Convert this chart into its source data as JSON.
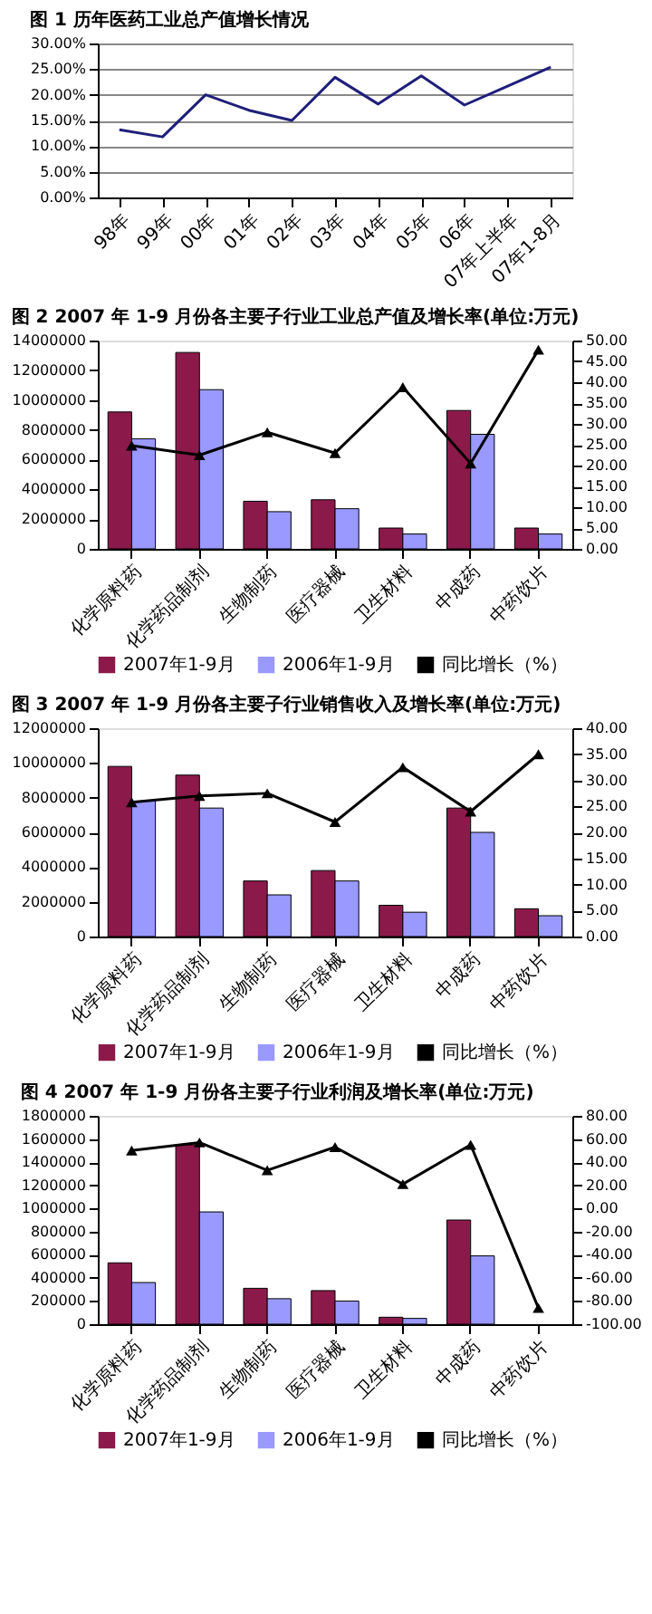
{
  "chart_data": [
    {
      "type": "line",
      "title": "图 1 历年医药工业总产值增长情况",
      "categories": [
        "98年",
        "99年",
        "00年",
        "01年",
        "02年",
        "03年",
        "04年",
        "05年",
        "06年",
        "07年上半年",
        "07年1-8月"
      ],
      "series": [
        {
          "color": "#1f1f7a",
          "values": [
            13.2,
            11.8,
            20.0,
            17.0,
            15.0,
            23.4,
            18.2,
            23.7,
            18.0,
            21.7,
            25.4
          ]
        }
      ],
      "ylim": [
        0,
        30
      ],
      "yticks": [
        {
          "value": 0,
          "label": "0.00%"
        },
        {
          "value": 5,
          "label": "5.00%"
        },
        {
          "value": 10,
          "label": "10.00%"
        },
        {
          "value": 15,
          "label": "15.00%"
        },
        {
          "value": 20,
          "label": "20.00%"
        },
        {
          "value": 25,
          "label": "25.00%"
        },
        {
          "value": 30,
          "label": "30.00%"
        }
      ],
      "grid": "y",
      "legend": false,
      "marker": "none"
    },
    {
      "type": "bar",
      "title": "图 2 2007 年 1-9 月份各主要子行业工业总产值及增长率(单位:万元)",
      "categories": [
        "化学原料药",
        "化学药品制剂",
        "生物制药",
        "医疗器械",
        "卫生材料",
        "中成药",
        "中药饮片"
      ],
      "series": [
        {
          "name": "2007年1-9月",
          "color": "#8b1a4a",
          "values": [
            9200000,
            13200000,
            3200000,
            3300000,
            1400000,
            9300000,
            1400000
          ]
        },
        {
          "name": "2006年1-9月",
          "color": "#9999ff",
          "values": [
            7400000,
            10700000,
            2500000,
            2700000,
            1000000,
            7700000,
            1000000
          ]
        },
        {
          "name": "同比增长（%）",
          "type": "line",
          "axis": "y2",
          "color": "#000000",
          "values": [
            24.8,
            22.5,
            28.0,
            23.0,
            38.8,
            20.5,
            47.8
          ]
        }
      ],
      "ylim": [
        0,
        14000000
      ],
      "yticks": [
        0,
        2000000,
        4000000,
        6000000,
        8000000,
        10000000,
        12000000,
        14000000
      ],
      "y2lim": [
        0,
        50
      ],
      "y2ticks": [
        {
          "value": 0,
          "label": "0.00"
        },
        {
          "value": 5,
          "label": "5.00"
        },
        {
          "value": 10,
          "label": "10.00"
        },
        {
          "value": 15,
          "label": "15.00"
        },
        {
          "value": 20,
          "label": "20.00"
        },
        {
          "value": 25,
          "label": "25.00"
        },
        {
          "value": 30,
          "label": "30.00"
        },
        {
          "value": 35,
          "label": "35.00"
        },
        {
          "value": 40,
          "label": "40.00"
        },
        {
          "value": 45,
          "label": "45.00"
        },
        {
          "value": 50,
          "label": "50.00"
        }
      ],
      "grid": false,
      "legend": "bottom",
      "marker": "triangle"
    },
    {
      "type": "bar",
      "title": "图 3 2007 年 1-9 月份各主要子行业销售收入及增长率(单位:万元)",
      "categories": [
        "化学原料药",
        "化学药品制剂",
        "生物制药",
        "医疗器械",
        "卫生材料",
        "中成药",
        "中药饮片"
      ],
      "series": [
        {
          "name": "2007年1-9月",
          "color": "#8b1a4a",
          "values": [
            9800000,
            9300000,
            3200000,
            3800000,
            1800000,
            7400000,
            1600000
          ]
        },
        {
          "name": "2006年1-9月",
          "color": "#9999ff",
          "values": [
            7800000,
            7400000,
            2400000,
            3200000,
            1400000,
            6000000,
            1200000
          ]
        },
        {
          "name": "同比增长（%）",
          "type": "line",
          "axis": "y2",
          "color": "#000000",
          "values": [
            25.8,
            27.0,
            27.5,
            22.0,
            32.5,
            24.0,
            35.0
          ]
        }
      ],
      "ylim": [
        0,
        12000000
      ],
      "yticks": [
        0,
        2000000,
        4000000,
        6000000,
        8000000,
        10000000,
        12000000
      ],
      "y2lim": [
        0,
        40
      ],
      "y2ticks": [
        {
          "value": 0,
          "label": "0.00"
        },
        {
          "value": 5,
          "label": "5.00"
        },
        {
          "value": 10,
          "label": "10.00"
        },
        {
          "value": 15,
          "label": "15.00"
        },
        {
          "value": 20,
          "label": "20.00"
        },
        {
          "value": 25,
          "label": "25.00"
        },
        {
          "value": 30,
          "label": "30.00"
        },
        {
          "value": 35,
          "label": "35.00"
        },
        {
          "value": 40,
          "label": "40.00"
        }
      ],
      "grid": false,
      "legend": "bottom",
      "marker": "triangle"
    },
    {
      "type": "bar",
      "title": "图 4 2007 年 1-9 月份各主要子行业利润及增长率(单位:万元)",
      "categories": [
        "化学原料药",
        "化学药品制剂",
        "生物制药",
        "医疗器械",
        "卫生材料",
        "中成药",
        "中药饮片"
      ],
      "series": [
        {
          "name": "2007年1-9月",
          "color": "#8b1a4a",
          "values": [
            530000,
            1550000,
            310000,
            290000,
            60000,
            900000,
            null
          ]
        },
        {
          "name": "2006年1-9月",
          "color": "#9999ff",
          "values": [
            360000,
            970000,
            220000,
            200000,
            50000,
            590000,
            null
          ]
        },
        {
          "name": "同比增长（%）",
          "type": "line",
          "axis": "y2",
          "color": "#000000",
          "values": [
            50,
            57,
            33,
            53,
            21,
            55,
            -86
          ]
        }
      ],
      "ylim": [
        0,
        1800000
      ],
      "yticks": [
        0,
        200000,
        400000,
        600000,
        800000,
        1000000,
        1200000,
        1400000,
        1600000,
        1800000
      ],
      "y2lim": [
        -100,
        80
      ],
      "y2ticks": [
        {
          "value": -100,
          "label": "-100.00"
        },
        {
          "value": -80,
          "label": "-80.00"
        },
        {
          "value": -60,
          "label": "-60.00"
        },
        {
          "value": -40,
          "label": "-40.00"
        },
        {
          "value": -20,
          "label": "-20.00"
        },
        {
          "value": 0,
          "label": "0.00"
        },
        {
          "value": 20,
          "label": "20.00"
        },
        {
          "value": 40,
          "label": "40.00"
        },
        {
          "value": 60,
          "label": "60.00"
        },
        {
          "value": 80,
          "label": "80.00"
        }
      ],
      "grid": false,
      "legend": "bottom",
      "marker": "triangle"
    }
  ]
}
